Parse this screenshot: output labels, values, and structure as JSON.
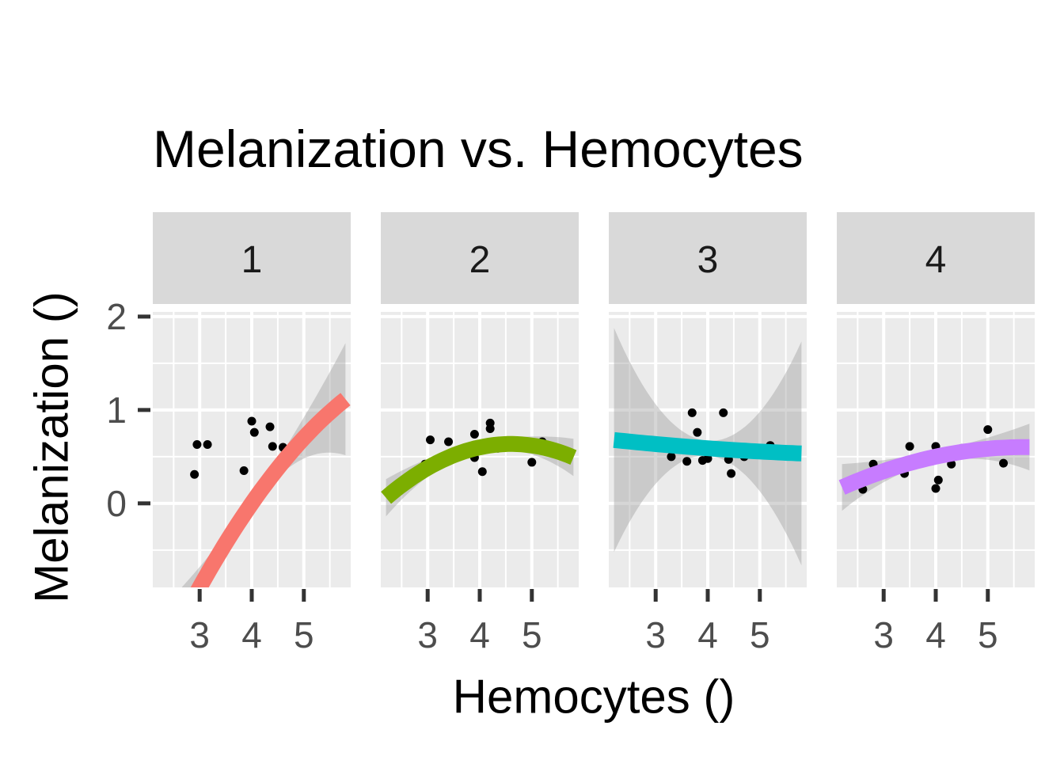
{
  "chart_data": {
    "type": "scatter",
    "title": "Melanization vs. Hemocytes",
    "xlabel": "Hemocytes ()",
    "ylabel": "Melanization ()",
    "xlim": [
      2.1,
      5.9
    ],
    "ylim": [
      -0.9,
      2.05
    ],
    "x_ticks": [
      3,
      4,
      5
    ],
    "y_ticks": [
      0,
      1,
      2
    ],
    "grid": true,
    "smooth": "quadratic fit with grey confidence band",
    "panels": [
      {
        "label": "1",
        "color": "#F8766D",
        "x_range": [
          2.2,
          5.8
        ],
        "fit": [
          0.0,
          0.8,
          -0.1
        ],
        "band": {
          "min": 0.05,
          "at_end": 0.6
        },
        "points": [
          [
            2.9,
            0.31
          ],
          [
            2.95,
            0.63
          ],
          [
            3.15,
            0.63
          ],
          [
            3.85,
            0.35
          ],
          [
            4.0,
            0.88
          ],
          [
            4.05,
            0.76
          ],
          [
            4.35,
            0.82
          ],
          [
            4.4,
            0.61
          ],
          [
            4.6,
            0.6
          ]
        ]
      },
      {
        "label": "2",
        "color": "#7CAE00",
        "x_range": [
          2.2,
          5.8
        ],
        "fit": [
          0.6,
          0.12,
          -0.1
        ],
        "band": {
          "min": 0.05,
          "at_end": 0.2
        },
        "points": [
          [
            2.95,
            0.42
          ],
          [
            3.05,
            0.68
          ],
          [
            3.4,
            0.66
          ],
          [
            3.9,
            0.74
          ],
          [
            3.9,
            0.49
          ],
          [
            4.05,
            0.34
          ],
          [
            4.2,
            0.86
          ],
          [
            4.2,
            0.8
          ],
          [
            4.35,
            0.59
          ],
          [
            5.0,
            0.44
          ],
          [
            5.2,
            0.66
          ]
        ]
      },
      {
        "label": "3",
        "color": "#00BFC4",
        "x_range": [
          2.2,
          5.8
        ],
        "fit": [
          0.59,
          -0.04,
          0.005
        ],
        "band": {
          "min": 0.08,
          "at_end": 1.2
        },
        "points": [
          [
            3.3,
            0.5
          ],
          [
            3.6,
            0.45
          ],
          [
            3.7,
            0.97
          ],
          [
            3.8,
            0.76
          ],
          [
            3.9,
            0.46
          ],
          [
            4.0,
            0.48
          ],
          [
            4.3,
            0.97
          ],
          [
            4.4,
            0.47
          ],
          [
            4.45,
            0.32
          ],
          [
            4.7,
            0.5
          ],
          [
            5.2,
            0.62
          ]
        ]
      },
      {
        "label": "4",
        "color": "#C77CFF",
        "x_range": [
          2.2,
          5.8
        ],
        "fit": [
          0.5,
          0.12,
          -0.035
        ],
        "band": {
          "min": 0.06,
          "at_end": 0.25
        },
        "points": [
          [
            2.6,
            0.15
          ],
          [
            2.8,
            0.42
          ],
          [
            3.4,
            0.32
          ],
          [
            3.5,
            0.61
          ],
          [
            4.0,
            0.61
          ],
          [
            4.0,
            0.16
          ],
          [
            4.05,
            0.25
          ],
          [
            4.3,
            0.42
          ],
          [
            4.5,
            0.59
          ],
          [
            5.0,
            0.79
          ],
          [
            5.3,
            0.43
          ]
        ]
      }
    ]
  }
}
